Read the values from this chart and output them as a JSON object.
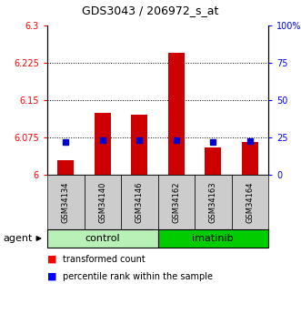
{
  "title": "GDS3043 / 206972_s_at",
  "categories": [
    "GSM34134",
    "GSM34140",
    "GSM34146",
    "GSM34162",
    "GSM34163",
    "GSM34164"
  ],
  "red_values": [
    6.03,
    6.125,
    6.12,
    6.245,
    6.055,
    6.065
  ],
  "blue_values": [
    6.065,
    6.07,
    6.07,
    6.07,
    6.065,
    6.067
  ],
  "ylim_left": [
    6.0,
    6.3
  ],
  "ylim_right": [
    0,
    100
  ],
  "left_ticks": [
    6.0,
    6.075,
    6.15,
    6.225,
    6.3
  ],
  "right_ticks": [
    0,
    25,
    50,
    75,
    100
  ],
  "left_tick_labels": [
    "6",
    "6.075",
    "6.15",
    "6.225",
    "6.3"
  ],
  "right_tick_labels": [
    "0",
    "25",
    "50",
    "75",
    "100%"
  ],
  "group_ranges": [
    {
      "label": "control",
      "start": 0,
      "end": 2,
      "color": "#b8f0b8"
    },
    {
      "label": "imatinib",
      "start": 3,
      "end": 5,
      "color": "#00cc00"
    }
  ],
  "agent_label": "agent",
  "bar_color": "#cc0000",
  "dot_color": "#0000cc",
  "bar_width": 0.45,
  "grid_ticks": [
    6.075,
    6.15,
    6.225
  ],
  "figsize": [
    3.31,
    3.45
  ],
  "dpi": 100
}
